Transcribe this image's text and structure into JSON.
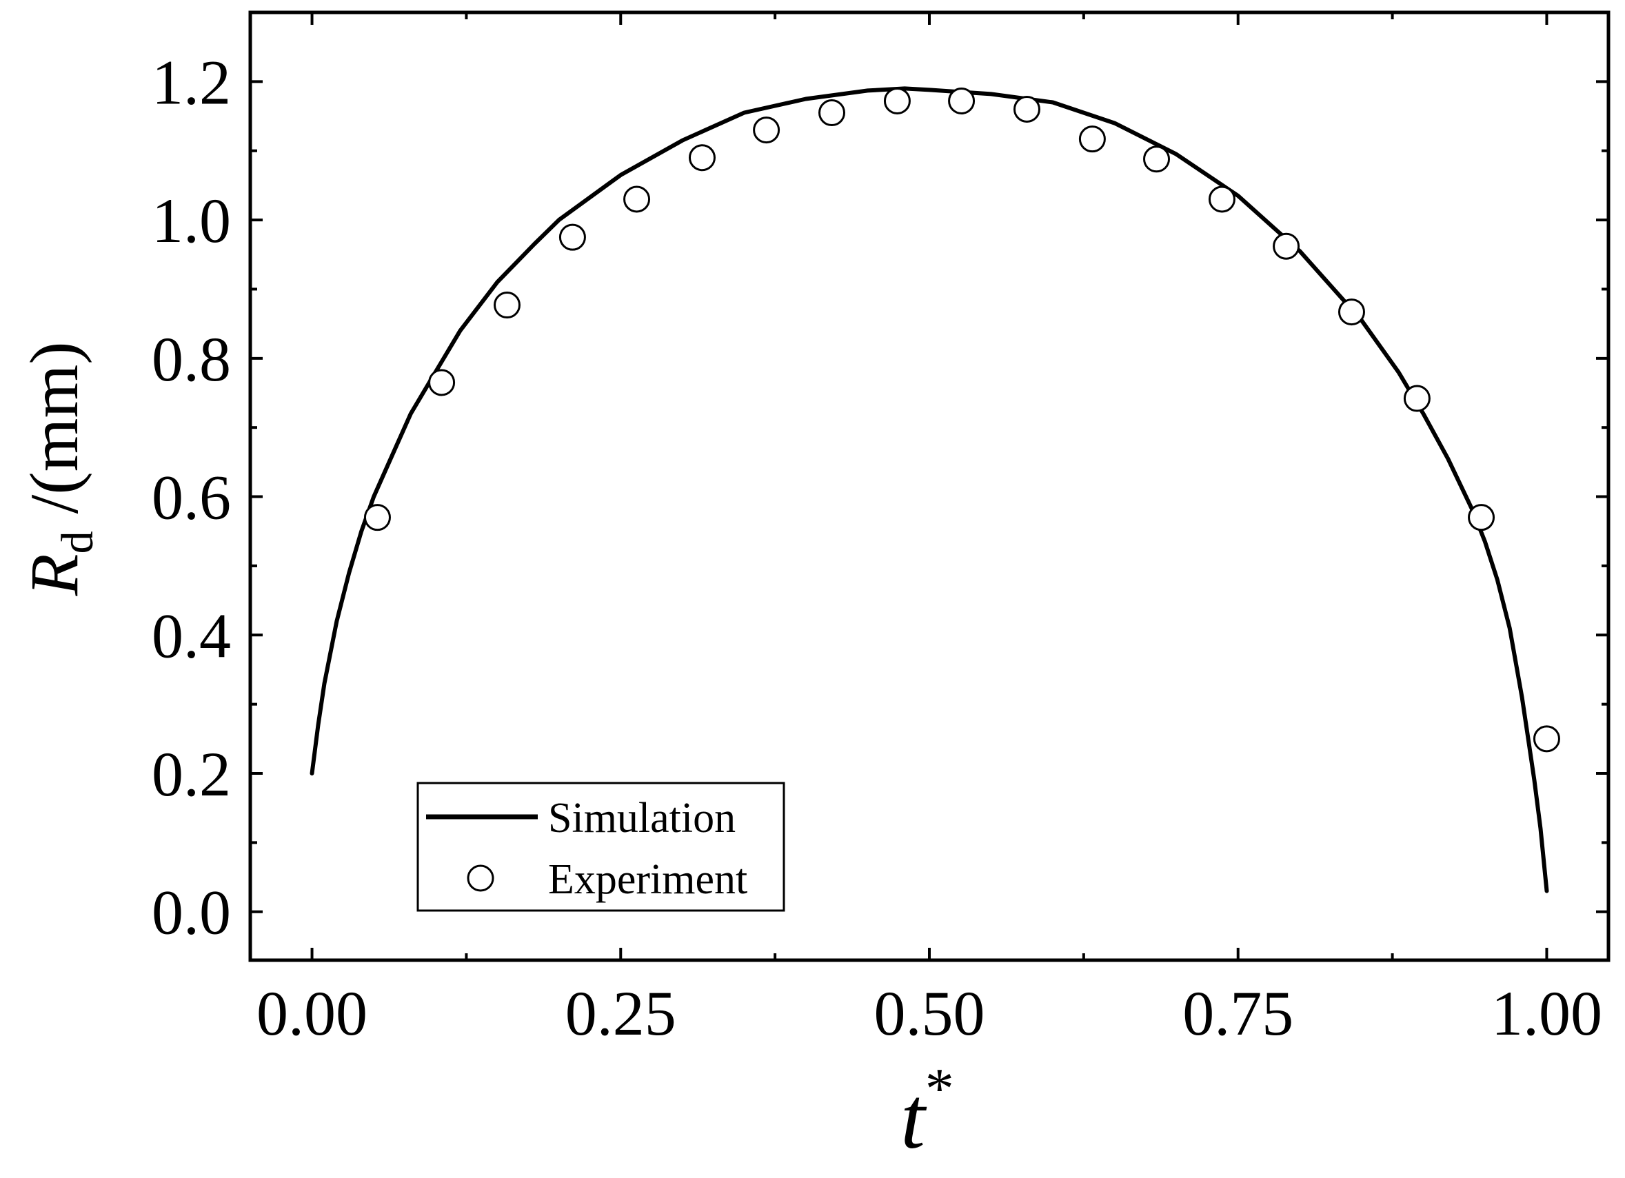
{
  "chart_data": {
    "type": "line",
    "xlabel": {
      "main": "t",
      "superscript": "*"
    },
    "ylabel": {
      "main": "R",
      "subscript": "d",
      "suffix": " /(mm)"
    },
    "xlim": [
      -0.05,
      1.05
    ],
    "ylim": [
      -0.07,
      1.3
    ],
    "xticks": [
      0.0,
      0.25,
      0.5,
      0.75,
      1.0
    ],
    "xtick_labels": [
      "0.00",
      "0.25",
      "0.50",
      "0.75",
      "1.00"
    ],
    "yticks": [
      0.0,
      0.2,
      0.4,
      0.6,
      0.8,
      1.0,
      1.2
    ],
    "ytick_labels": [
      "0.0",
      "0.2",
      "0.4",
      "0.6",
      "0.8",
      "1.0",
      "1.2"
    ],
    "grid": false,
    "legend_position": "bottom-left",
    "series": [
      {
        "name": "Simulation",
        "style": "solid-line",
        "color": "#000000",
        "x": [
          0.0,
          0.005,
          0.01,
          0.02,
          0.03,
          0.04,
          0.05,
          0.06,
          0.08,
          0.1,
          0.12,
          0.15,
          0.18,
          0.2,
          0.25,
          0.3,
          0.35,
          0.4,
          0.45,
          0.48,
          0.5,
          0.55,
          0.6,
          0.65,
          0.7,
          0.75,
          0.8,
          0.85,
          0.88,
          0.9,
          0.92,
          0.94,
          0.95,
          0.96,
          0.97,
          0.98,
          0.985,
          0.99,
          0.995,
          1.0
        ],
        "y": [
          0.2,
          0.27,
          0.33,
          0.42,
          0.49,
          0.55,
          0.6,
          0.64,
          0.72,
          0.78,
          0.84,
          0.91,
          0.965,
          1.0,
          1.065,
          1.115,
          1.155,
          1.175,
          1.187,
          1.19,
          1.188,
          1.182,
          1.17,
          1.14,
          1.095,
          1.035,
          0.955,
          0.855,
          0.78,
          0.72,
          0.655,
          0.58,
          0.535,
          0.48,
          0.41,
          0.31,
          0.25,
          0.19,
          0.12,
          0.03
        ]
      },
      {
        "name": "Experiment",
        "style": "open-circle",
        "color": "#000000",
        "x": [
          0.053,
          0.105,
          0.158,
          0.211,
          0.263,
          0.316,
          0.368,
          0.421,
          0.474,
          0.526,
          0.579,
          0.632,
          0.684,
          0.737,
          0.789,
          0.842,
          0.895,
          0.947,
          1.0
        ],
        "y": [
          0.57,
          0.765,
          0.877,
          0.975,
          1.03,
          1.09,
          1.13,
          1.155,
          1.172,
          1.172,
          1.16,
          1.117,
          1.088,
          1.03,
          0.962,
          0.867,
          0.742,
          0.57,
          0.25
        ]
      }
    ]
  }
}
